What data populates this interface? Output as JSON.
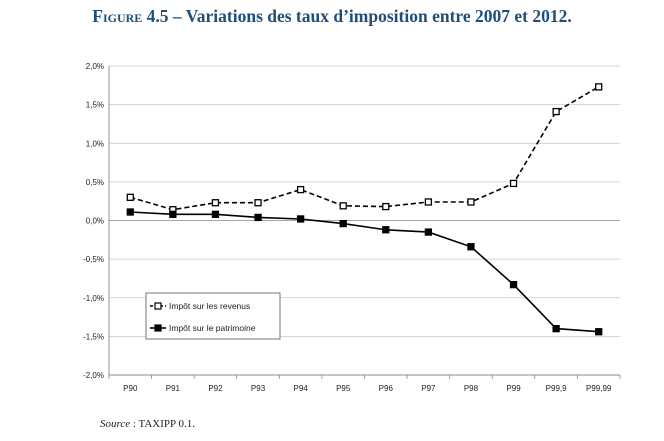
{
  "figure": {
    "title_prefix": "Figure 4.5",
    "title_rest": " – Variations des taux d’imposition entre 2007 et 2012."
  },
  "source": {
    "label": "Source",
    "separator": " : ",
    "text": "TAXIPP 0.1."
  },
  "colors": {
    "axis": "#888888",
    "grid": "#c8c8c8",
    "series": "#000000",
    "title": "#1f4e79"
  },
  "chart_data": {
    "type": "line",
    "title": "Variations des taux d’imposition entre 2007 et 2012.",
    "xlabel": "",
    "ylabel": "",
    "ylim": [
      -2.0,
      2.0
    ],
    "ytick_values": [
      2.0,
      1.5,
      1.0,
      0.5,
      0.0,
      -0.5,
      -1.0,
      -1.5,
      -2.0
    ],
    "ytick_labels": [
      "2,0%",
      "1,5%",
      "1,0%",
      "0,5%",
      "0,0%",
      "-0,5%",
      "-1,0%",
      "-1,5%",
      "-2,0%"
    ],
    "grid": true,
    "legend_position": "bottom-left",
    "categories": [
      "P90",
      "P91",
      "P92",
      "P93",
      "P94",
      "P95",
      "P96",
      "P97",
      "P98",
      "P99",
      "P99,9",
      "P99,99"
    ],
    "series": [
      {
        "name": "Impôt sur les revenus",
        "style": "dashed",
        "marker": "open-square",
        "values": [
          0.3,
          0.14,
          0.23,
          0.23,
          0.4,
          0.19,
          0.18,
          0.24,
          0.24,
          0.48,
          1.41,
          1.73
        ]
      },
      {
        "name": "Impôt sur le patrimoine",
        "style": "solid",
        "marker": "filled-square",
        "values": [
          0.11,
          0.08,
          0.08,
          0.04,
          0.02,
          -0.04,
          -0.12,
          -0.15,
          -0.34,
          -0.83,
          -1.4,
          -1.44
        ]
      }
    ]
  }
}
